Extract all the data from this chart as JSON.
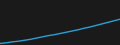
{
  "x": [
    2000,
    2001,
    2002,
    2003,
    2004,
    2005,
    2006,
    2007,
    2008,
    2009,
    2010,
    2011,
    2012,
    2013,
    2014,
    2015,
    2016,
    2017,
    2018,
    2019,
    2020
  ],
  "y": [
    14.0,
    14.2,
    14.5,
    14.7,
    15.0,
    15.3,
    15.7,
    16.1,
    16.5,
    16.8,
    17.2,
    17.6,
    18.0,
    18.4,
    18.9,
    19.3,
    19.8,
    20.3,
    20.8,
    21.3,
    21.8
  ],
  "line_color": "#2b9fd4",
  "line_width": 1.0,
  "background_color": "#1a1a1a",
  "plot_bg_color": "#1a1a1a",
  "ylim": [
    13.5,
    28
  ],
  "xlim": [
    2000,
    2020
  ]
}
